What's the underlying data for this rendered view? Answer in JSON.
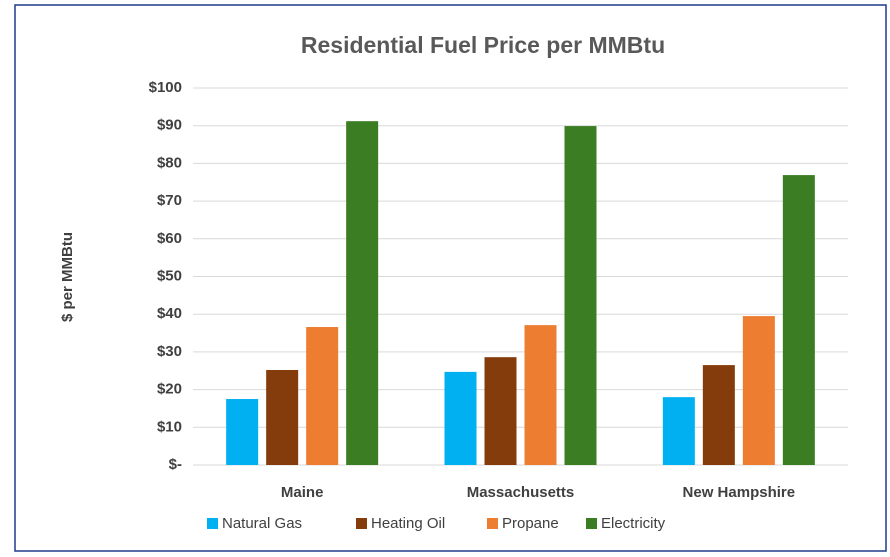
{
  "chart_data": {
    "type": "bar",
    "title": "Residential Fuel Price per MMBtu",
    "y_label": "$ per MMBtu",
    "categories": [
      "Maine",
      "Massachusetts",
      "New Hampshire"
    ],
    "series": [
      {
        "name": "Natural Gas",
        "color": "#00b0f0",
        "values": [
          17.5,
          24.7,
          18.0
        ]
      },
      {
        "name": "Heating Oil",
        "color": "#843c0c",
        "values": [
          25.2,
          28.6,
          26.5
        ]
      },
      {
        "name": "Propane",
        "color": "#ed7d31",
        "values": [
          36.6,
          37.1,
          39.5
        ]
      },
      {
        "name": "Electricity",
        "color": "#3b7d23",
        "values": [
          91.2,
          89.9,
          76.9
        ]
      }
    ],
    "ylim": [
      0,
      100
    ],
    "yticks": [
      {
        "value": 0,
        "label": "$-"
      },
      {
        "value": 10,
        "label": "$10"
      },
      {
        "value": 20,
        "label": "$20"
      },
      {
        "value": 30,
        "label": "$30"
      },
      {
        "value": 40,
        "label": "$40"
      },
      {
        "value": 50,
        "label": "$50"
      },
      {
        "value": 60,
        "label": "$60"
      },
      {
        "value": 70,
        "label": "$70"
      },
      {
        "value": 80,
        "label": "$80"
      },
      {
        "value": 90,
        "label": "$90"
      },
      {
        "value": 100,
        "label": "$100"
      }
    ],
    "grid": true,
    "legend": "bottom"
  }
}
